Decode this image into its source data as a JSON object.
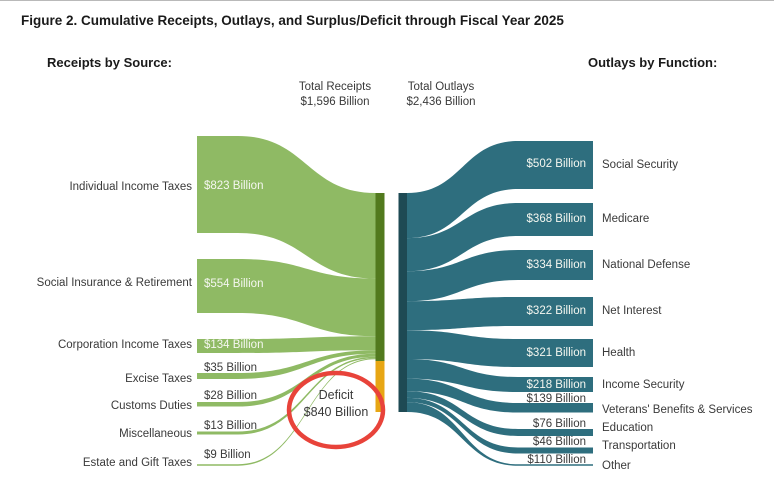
{
  "title": "Figure 2. Cumulative Receipts, Outlays, and Surplus/Deficit through Fiscal Year 2025",
  "left_header": "Receipts by Source:",
  "right_header": "Outlays by Function:",
  "totals": {
    "receipts": {
      "label": "Total Receipts",
      "value": "$1,596 Billion"
    },
    "outlays": {
      "label": "Total Outlays",
      "value": "$2,436 Billion"
    }
  },
  "deficit": {
    "label": "Deficit",
    "value": "$840 Billion"
  },
  "colors": {
    "receipts_flow": "#8fba64",
    "receipts_bar": "#527a1e",
    "deficit_bar_segment": "#e7a614",
    "outlays_flow": "#2e6e7e",
    "outlays_bar": "#1e4a54",
    "deficit_circle": "#e8433a",
    "label_dark": "#3a3a3a",
    "label_light": "#f5f7f0"
  },
  "chart_data": {
    "type": "sankey",
    "title": "Cumulative Receipts, Outlays, and Surplus/Deficit through Fiscal Year 2025",
    "unit": "billions of US dollars",
    "total_receipts_billion": 1596,
    "total_outlays_billion": 2436,
    "deficit_billion": 840,
    "receipts_by_source": [
      {
        "label": "Individual Income Taxes",
        "value": 823,
        "value_label": "$823 Billion"
      },
      {
        "label": "Social Insurance & Retirement",
        "value": 554,
        "value_label": "$554 Billion"
      },
      {
        "label": "Corporation Income Taxes",
        "value": 134,
        "value_label": "$134 Billion"
      },
      {
        "label": "Excise Taxes",
        "value": 35,
        "value_label": "$35 Billion"
      },
      {
        "label": "Customs Duties",
        "value": 28,
        "value_label": "$28 Billion"
      },
      {
        "label": "Miscellaneous",
        "value": 13,
        "value_label": "$13 Billion"
      },
      {
        "label": "Estate and Gift Taxes",
        "value": 9,
        "value_label": "$9 Billion"
      }
    ],
    "outlays_by_function": [
      {
        "label": "Social Security",
        "value": 502,
        "value_label": "$502 Billion"
      },
      {
        "label": "Medicare",
        "value": 368,
        "value_label": "$368 Billion"
      },
      {
        "label": "National Defense",
        "value": 334,
        "value_label": "$334 Billion"
      },
      {
        "label": "Net Interest",
        "value": 322,
        "value_label": "$322 Billion"
      },
      {
        "label": "Health",
        "value": 321,
        "value_label": "$321 Billion"
      },
      {
        "label": "Income Security",
        "value": 218,
        "value_label": "$218 Billion"
      },
      {
        "label": "Veterans' Benefits & Services",
        "value": 139,
        "value_label": "$139 Billion"
      },
      {
        "label": "Education",
        "value": 76,
        "value_label": "$76 Billion"
      },
      {
        "label": "Transportation",
        "value": 46,
        "value_label": "$46 Billion"
      },
      {
        "label": "Other",
        "value": 110,
        "value_label": "$110 Billion"
      }
    ]
  }
}
